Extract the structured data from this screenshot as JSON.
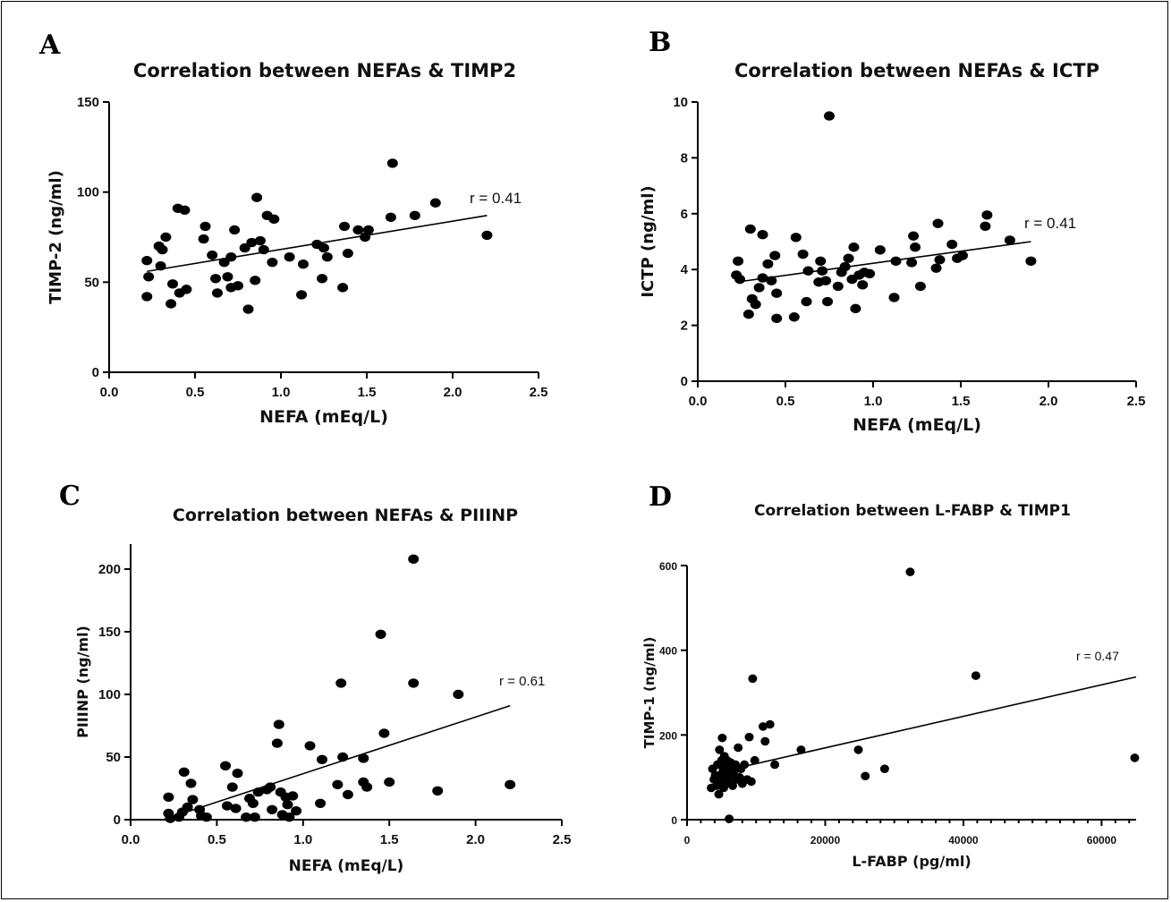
{
  "chart_data": [
    {
      "panel": "A",
      "type": "scatter",
      "title": "Correlation between NEFAs & TIMP2",
      "xlabel": "NEFA (mEq/L)",
      "ylabel": "TIMP-2 (ng/ml)",
      "xlim": [
        0,
        2.5
      ],
      "ylim": [
        0,
        150
      ],
      "xticks": [
        "0.0",
        "0.5",
        "1.0",
        "1.5",
        "2.0",
        "2.5"
      ],
      "yticks": [
        "0",
        "50",
        "100",
        "150"
      ],
      "annotation": "r = 0.41",
      "fit": {
        "x": [
          0.22,
          2.2
        ],
        "y": [
          56,
          87
        ]
      },
      "points": [
        {
          "x": 0.22,
          "y": 42
        },
        {
          "x": 0.22,
          "y": 62
        },
        {
          "x": 0.23,
          "y": 53
        },
        {
          "x": 0.29,
          "y": 70
        },
        {
          "x": 0.3,
          "y": 59
        },
        {
          "x": 0.31,
          "y": 68
        },
        {
          "x": 0.33,
          "y": 75
        },
        {
          "x": 0.36,
          "y": 38
        },
        {
          "x": 0.37,
          "y": 49
        },
        {
          "x": 0.4,
          "y": 91
        },
        {
          "x": 0.41,
          "y": 44
        },
        {
          "x": 0.44,
          "y": 90
        },
        {
          "x": 0.45,
          "y": 46
        },
        {
          "x": 0.55,
          "y": 74
        },
        {
          "x": 0.56,
          "y": 81
        },
        {
          "x": 0.6,
          "y": 65
        },
        {
          "x": 0.62,
          "y": 52
        },
        {
          "x": 0.63,
          "y": 44
        },
        {
          "x": 0.67,
          "y": 61
        },
        {
          "x": 0.69,
          "y": 53
        },
        {
          "x": 0.71,
          "y": 64
        },
        {
          "x": 0.71,
          "y": 47
        },
        {
          "x": 0.73,
          "y": 79
        },
        {
          "x": 0.75,
          "y": 48
        },
        {
          "x": 0.79,
          "y": 69
        },
        {
          "x": 0.81,
          "y": 35
        },
        {
          "x": 0.83,
          "y": 72
        },
        {
          "x": 0.85,
          "y": 51
        },
        {
          "x": 0.86,
          "y": 97
        },
        {
          "x": 0.88,
          "y": 73
        },
        {
          "x": 0.9,
          "y": 68
        },
        {
          "x": 0.92,
          "y": 87
        },
        {
          "x": 0.95,
          "y": 61
        },
        {
          "x": 0.96,
          "y": 85
        },
        {
          "x": 1.05,
          "y": 64
        },
        {
          "x": 1.12,
          "y": 43
        },
        {
          "x": 1.13,
          "y": 60
        },
        {
          "x": 1.21,
          "y": 71
        },
        {
          "x": 1.24,
          "y": 52
        },
        {
          "x": 1.25,
          "y": 69
        },
        {
          "x": 1.27,
          "y": 64
        },
        {
          "x": 1.36,
          "y": 47
        },
        {
          "x": 1.37,
          "y": 81
        },
        {
          "x": 1.39,
          "y": 66
        },
        {
          "x": 1.45,
          "y": 79
        },
        {
          "x": 1.49,
          "y": 75
        },
        {
          "x": 1.51,
          "y": 79
        },
        {
          "x": 1.64,
          "y": 86
        },
        {
          "x": 1.65,
          "y": 116
        },
        {
          "x": 1.78,
          "y": 87
        },
        {
          "x": 1.9,
          "y": 94
        },
        {
          "x": 2.2,
          "y": 76
        }
      ]
    },
    {
      "panel": "B",
      "type": "scatter",
      "title": "Correlation between NEFAs & ICTP",
      "xlabel": "NEFA (mEq/L)",
      "ylabel": "ICTP (ng/ml)",
      "xlim": [
        0,
        2.5
      ],
      "ylim": [
        0,
        10
      ],
      "xticks": [
        "0.0",
        "0.5",
        "1.0",
        "1.5",
        "2.0",
        "2.5"
      ],
      "yticks": [
        "0",
        "2",
        "4",
        "6",
        "8",
        "10"
      ],
      "annotation": "r = 0.41",
      "fit": {
        "x": [
          0.22,
          1.9
        ],
        "y": [
          3.55,
          5.0
        ]
      },
      "points": [
        {
          "x": 0.22,
          "y": 3.8
        },
        {
          "x": 0.23,
          "y": 4.3
        },
        {
          "x": 0.24,
          "y": 3.65
        },
        {
          "x": 0.29,
          "y": 2.4
        },
        {
          "x": 0.3,
          "y": 5.45
        },
        {
          "x": 0.31,
          "y": 2.95
        },
        {
          "x": 0.33,
          "y": 2.75
        },
        {
          "x": 0.35,
          "y": 3.35
        },
        {
          "x": 0.37,
          "y": 3.7
        },
        {
          "x": 0.37,
          "y": 5.25
        },
        {
          "x": 0.4,
          "y": 4.2
        },
        {
          "x": 0.42,
          "y": 3.6
        },
        {
          "x": 0.44,
          "y": 4.5
        },
        {
          "x": 0.45,
          "y": 3.15
        },
        {
          "x": 0.45,
          "y": 2.25
        },
        {
          "x": 0.55,
          "y": 2.3
        },
        {
          "x": 0.56,
          "y": 5.15
        },
        {
          "x": 0.6,
          "y": 4.55
        },
        {
          "x": 0.62,
          "y": 2.85
        },
        {
          "x": 0.63,
          "y": 3.95
        },
        {
          "x": 0.69,
          "y": 3.55
        },
        {
          "x": 0.7,
          "y": 4.3
        },
        {
          "x": 0.71,
          "y": 3.95
        },
        {
          "x": 0.73,
          "y": 3.6
        },
        {
          "x": 0.74,
          "y": 2.85
        },
        {
          "x": 0.75,
          "y": 9.5
        },
        {
          "x": 0.8,
          "y": 3.4
        },
        {
          "x": 0.82,
          "y": 3.9
        },
        {
          "x": 0.84,
          "y": 4.1
        },
        {
          "x": 0.86,
          "y": 4.4
        },
        {
          "x": 0.88,
          "y": 3.65
        },
        {
          "x": 0.89,
          "y": 4.8
        },
        {
          "x": 0.9,
          "y": 2.6
        },
        {
          "x": 0.92,
          "y": 3.8
        },
        {
          "x": 0.94,
          "y": 3.45
        },
        {
          "x": 0.95,
          "y": 3.9
        },
        {
          "x": 0.98,
          "y": 3.85
        },
        {
          "x": 1.04,
          "y": 4.7
        },
        {
          "x": 1.12,
          "y": 3.0
        },
        {
          "x": 1.13,
          "y": 4.3
        },
        {
          "x": 1.22,
          "y": 4.25
        },
        {
          "x": 1.23,
          "y": 5.2
        },
        {
          "x": 1.24,
          "y": 4.8
        },
        {
          "x": 1.27,
          "y": 3.4
        },
        {
          "x": 1.36,
          "y": 4.05
        },
        {
          "x": 1.37,
          "y": 5.65
        },
        {
          "x": 1.38,
          "y": 4.35
        },
        {
          "x": 1.45,
          "y": 4.9
        },
        {
          "x": 1.48,
          "y": 4.4
        },
        {
          "x": 1.51,
          "y": 4.5
        },
        {
          "x": 1.64,
          "y": 5.55
        },
        {
          "x": 1.65,
          "y": 5.95
        },
        {
          "x": 1.78,
          "y": 5.05
        },
        {
          "x": 1.9,
          "y": 4.3
        }
      ]
    },
    {
      "panel": "C",
      "type": "scatter",
      "title": "Correlation between NEFAs & PIIINP",
      "xlabel": "NEFA (mEq/L)",
      "ylabel": "PIIINP (ng/ml)",
      "xlim": [
        0,
        2.5
      ],
      "ylim": [
        0,
        220
      ],
      "xticks": [
        "0.0",
        "0.5",
        "1.0",
        "1.5",
        "2.0",
        "2.5"
      ],
      "yticks": [
        "0",
        "50",
        "100",
        "150",
        "200"
      ],
      "annotation": "r = 0.61",
      "fit": {
        "x": [
          0.3,
          2.2
        ],
        "y": [
          5,
          91
        ]
      },
      "points": [
        {
          "x": 0.22,
          "y": 18
        },
        {
          "x": 0.22,
          "y": 5
        },
        {
          "x": 0.23,
          "y": 1
        },
        {
          "x": 0.28,
          "y": 2
        },
        {
          "x": 0.3,
          "y": 6
        },
        {
          "x": 0.31,
          "y": 38
        },
        {
          "x": 0.33,
          "y": 10
        },
        {
          "x": 0.35,
          "y": 29
        },
        {
          "x": 0.36,
          "y": 16
        },
        {
          "x": 0.4,
          "y": 8
        },
        {
          "x": 0.41,
          "y": 3
        },
        {
          "x": 0.44,
          "y": 2
        },
        {
          "x": 0.55,
          "y": 43
        },
        {
          "x": 0.56,
          "y": 11
        },
        {
          "x": 0.59,
          "y": 26
        },
        {
          "x": 0.61,
          "y": 9
        },
        {
          "x": 0.62,
          "y": 37
        },
        {
          "x": 0.67,
          "y": 2
        },
        {
          "x": 0.69,
          "y": 17
        },
        {
          "x": 0.71,
          "y": 13
        },
        {
          "x": 0.72,
          "y": 2
        },
        {
          "x": 0.74,
          "y": 22
        },
        {
          "x": 0.79,
          "y": 24
        },
        {
          "x": 0.81,
          "y": 26
        },
        {
          "x": 0.82,
          "y": 8
        },
        {
          "x": 0.85,
          "y": 61
        },
        {
          "x": 0.86,
          "y": 76
        },
        {
          "x": 0.87,
          "y": 22
        },
        {
          "x": 0.88,
          "y": 4
        },
        {
          "x": 0.9,
          "y": 18
        },
        {
          "x": 0.91,
          "y": 12
        },
        {
          "x": 0.92,
          "y": 2
        },
        {
          "x": 0.94,
          "y": 19
        },
        {
          "x": 0.96,
          "y": 7
        },
        {
          "x": 1.04,
          "y": 59
        },
        {
          "x": 1.1,
          "y": 13
        },
        {
          "x": 1.11,
          "y": 48
        },
        {
          "x": 1.2,
          "y": 28
        },
        {
          "x": 1.22,
          "y": 109
        },
        {
          "x": 1.23,
          "y": 50
        },
        {
          "x": 1.26,
          "y": 20
        },
        {
          "x": 1.35,
          "y": 49
        },
        {
          "x": 1.35,
          "y": 30
        },
        {
          "x": 1.37,
          "y": 26
        },
        {
          "x": 1.45,
          "y": 148
        },
        {
          "x": 1.47,
          "y": 69
        },
        {
          "x": 1.5,
          "y": 30
        },
        {
          "x": 1.64,
          "y": 208
        },
        {
          "x": 1.64,
          "y": 109
        },
        {
          "x": 1.78,
          "y": 23
        },
        {
          "x": 1.9,
          "y": 100
        },
        {
          "x": 2.2,
          "y": 28
        }
      ]
    },
    {
      "panel": "D",
      "type": "scatter",
      "title": "Correlation between L-FABP & TIMP1",
      "xlabel": "L-FABP (pg/ml)",
      "ylabel": "TIMP-1 (ng/ml)",
      "xlim": [
        0,
        65000
      ],
      "ylim": [
        0,
        600
      ],
      "xticks": [
        "0",
        "20000",
        "40000",
        "60000"
      ],
      "yticks": [
        "0",
        "200",
        "400",
        "600"
      ],
      "annotation": "r = 0.47",
      "fit": {
        "x": [
          4000,
          65000
        ],
        "y": [
          110,
          337
        ]
      },
      "points": [
        {
          "x": 3500,
          "y": 75
        },
        {
          "x": 3700,
          "y": 120
        },
        {
          "x": 3900,
          "y": 95
        },
        {
          "x": 4100,
          "y": 105
        },
        {
          "x": 4300,
          "y": 80
        },
        {
          "x": 4400,
          "y": 130
        },
        {
          "x": 4600,
          "y": 60
        },
        {
          "x": 4700,
          "y": 165
        },
        {
          "x": 4800,
          "y": 100
        },
        {
          "x": 4900,
          "y": 90
        },
        {
          "x": 5000,
          "y": 140
        },
        {
          "x": 5100,
          "y": 193
        },
        {
          "x": 5200,
          "y": 115
        },
        {
          "x": 5300,
          "y": 75
        },
        {
          "x": 5400,
          "y": 150
        },
        {
          "x": 5500,
          "y": 125
        },
        {
          "x": 5600,
          "y": 85
        },
        {
          "x": 5700,
          "y": 110
        },
        {
          "x": 5800,
          "y": 140
        },
        {
          "x": 6000,
          "y": 95
        },
        {
          "x": 6100,
          "y": 2
        },
        {
          "x": 6200,
          "y": 120
        },
        {
          "x": 6300,
          "y": 135
        },
        {
          "x": 6500,
          "y": 105
        },
        {
          "x": 6600,
          "y": 80
        },
        {
          "x": 6800,
          "y": 115
        },
        {
          "x": 7000,
          "y": 130
        },
        {
          "x": 7200,
          "y": 95
        },
        {
          "x": 7400,
          "y": 170
        },
        {
          "x": 7600,
          "y": 100
        },
        {
          "x": 7800,
          "y": 120
        },
        {
          "x": 8000,
          "y": 85
        },
        {
          "x": 8300,
          "y": 130
        },
        {
          "x": 8700,
          "y": 95
        },
        {
          "x": 9000,
          "y": 195
        },
        {
          "x": 9300,
          "y": 90
        },
        {
          "x": 9500,
          "y": 333
        },
        {
          "x": 9800,
          "y": 140
        },
        {
          "x": 11000,
          "y": 220
        },
        {
          "x": 11300,
          "y": 185
        },
        {
          "x": 12000,
          "y": 225
        },
        {
          "x": 12700,
          "y": 130
        },
        {
          "x": 16500,
          "y": 165
        },
        {
          "x": 24800,
          "y": 165
        },
        {
          "x": 25800,
          "y": 103
        },
        {
          "x": 28600,
          "y": 120
        },
        {
          "x": 32300,
          "y": 585
        },
        {
          "x": 41800,
          "y": 340
        },
        {
          "x": 64800,
          "y": 146
        }
      ]
    }
  ]
}
